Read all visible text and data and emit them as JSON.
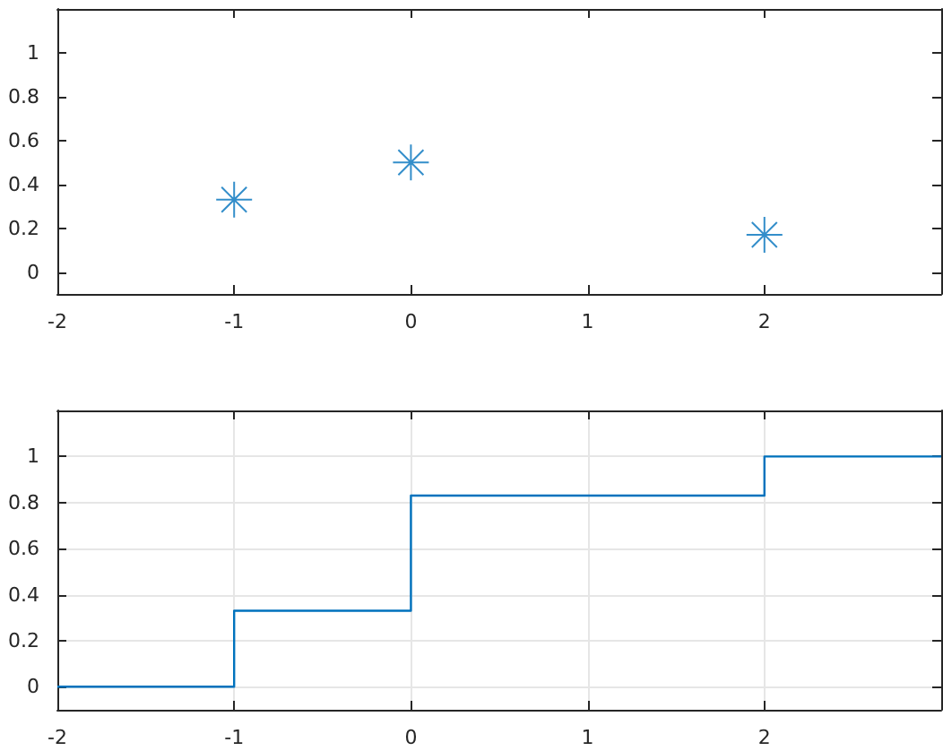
{
  "chart_data": [
    {
      "type": "scatter",
      "x": [
        -1,
        0,
        2
      ],
      "series": [
        {
          "color": "#0072bd",
          "values": [
            0.33,
            0.5,
            0.17
          ]
        }
      ],
      "marker": "cross",
      "xlim": [
        -2,
        3
      ],
      "xticks": [
        -2,
        -1,
        0,
        1,
        2
      ],
      "ylim": [
        -0.1,
        1.2
      ],
      "yticks": [
        0,
        0.2,
        0.4,
        0.6,
        0.8,
        1
      ],
      "grid": false
    },
    {
      "type": "step",
      "x": [
        -2,
        -1,
        0,
        2,
        3
      ],
      "series": [
        {
          "color": "#0072bd",
          "values": [
            0,
            0.33,
            0.83,
            1,
            1
          ]
        }
      ],
      "xlim": [
        -2,
        3
      ],
      "xticks": [
        -2,
        -1,
        0,
        1,
        2
      ],
      "ylim": [
        -0.1,
        1.2
      ],
      "yticks": [
        0,
        0.2,
        0.4,
        0.6,
        0.8,
        1
      ],
      "grid": true,
      "marker": "none"
    }
  ]
}
